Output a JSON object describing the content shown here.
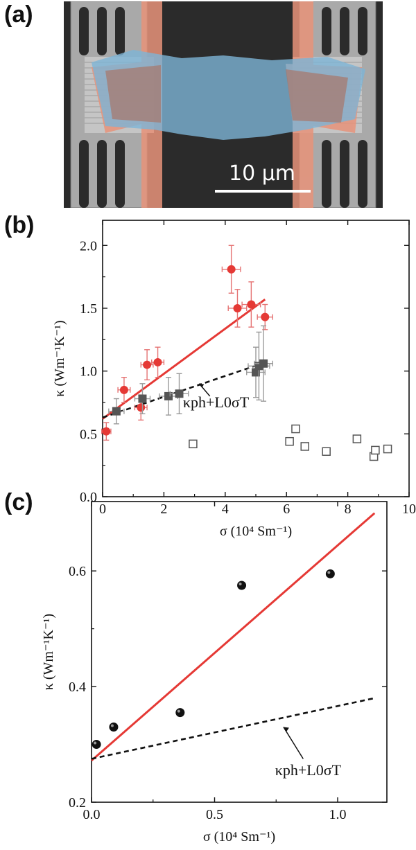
{
  "figure": {
    "panel_a_label": "(a)",
    "panel_b_label": "(b)",
    "panel_c_label": "(c)",
    "scale_bar_text": "10 μm"
  },
  "chart_data": [
    {
      "panel": "b",
      "type": "scatter",
      "xlabel": "σ (10⁴ Sm⁻¹)",
      "ylabel": "κ (Wm⁻¹K⁻¹)",
      "xlim": [
        0,
        10
      ],
      "ylim": [
        0,
        2.2
      ],
      "xticks": [
        "0",
        "2",
        "4",
        "6",
        "8",
        "10"
      ],
      "yticks": [
        "0.0",
        "0.5",
        "1.0",
        "1.5",
        "2.0"
      ],
      "grid": false,
      "annotation": "κph+L0σT",
      "series": [
        {
          "marker": "filled-circle-red",
          "color": "#e53935",
          "points": [
            {
              "x": 0.12,
              "y": 0.52,
              "xerr": 0.15,
              "yerr": 0.07
            },
            {
              "x": 0.7,
              "y": 0.85,
              "xerr": 0.2,
              "yerr": 0.1
            },
            {
              "x": 1.25,
              "y": 0.71,
              "xerr": 0.2,
              "yerr": 0.1
            },
            {
              "x": 1.45,
              "y": 1.05,
              "xerr": 0.2,
              "yerr": 0.12
            },
            {
              "x": 1.8,
              "y": 1.07,
              "xerr": 0.2,
              "yerr": 0.12
            },
            {
              "x": 4.2,
              "y": 1.81,
              "xerr": 0.3,
              "yerr": 0.19
            },
            {
              "x": 4.4,
              "y": 1.5,
              "xerr": 0.3,
              "yerr": 0.15
            },
            {
              "x": 4.85,
              "y": 1.53,
              "xerr": 0.3,
              "yerr": 0.18
            },
            {
              "x": 5.3,
              "y": 1.43,
              "xerr": 0.25,
              "yerr": 0.1
            }
          ]
        },
        {
          "marker": "filled-square-gray",
          "color": "#555555",
          "points": [
            {
              "x": 0.45,
              "y": 0.68,
              "xerr": 0.25,
              "yerr": 0.1
            },
            {
              "x": 1.3,
              "y": 0.78,
              "xerr": 0.25,
              "yerr": 0.12
            },
            {
              "x": 2.15,
              "y": 0.8,
              "xerr": 0.3,
              "yerr": 0.15
            },
            {
              "x": 2.5,
              "y": 0.82,
              "xerr": 0.3,
              "yerr": 0.16
            },
            {
              "x": 5.0,
              "y": 0.99,
              "xerr": 0.3,
              "yerr": 0.2
            },
            {
              "x": 5.1,
              "y": 1.04,
              "xerr": 0.35,
              "yerr": 0.27
            },
            {
              "x": 5.25,
              "y": 1.06,
              "xerr": 0.3,
              "yerr": 0.3
            }
          ]
        },
        {
          "marker": "open-square",
          "color": "#555555",
          "points": [
            {
              "x": 2.95,
              "y": 0.42
            },
            {
              "x": 6.1,
              "y": 0.44
            },
            {
              "x": 6.3,
              "y": 0.54
            },
            {
              "x": 6.6,
              "y": 0.4
            },
            {
              "x": 7.3,
              "y": 0.36
            },
            {
              "x": 8.3,
              "y": 0.46
            },
            {
              "x": 8.85,
              "y": 0.32
            },
            {
              "x": 8.9,
              "y": 0.37
            },
            {
              "x": 9.3,
              "y": 0.38
            }
          ]
        }
      ],
      "lines": [
        {
          "style": "solid",
          "color": "#e53935",
          "x": [
            0,
            5.3
          ],
          "y": [
            0.62,
            1.57
          ]
        },
        {
          "style": "dashed",
          "color": "#111111",
          "x": [
            0,
            5.2
          ],
          "y": [
            0.63,
            1.06
          ]
        }
      ]
    },
    {
      "panel": "c",
      "type": "scatter",
      "xlabel": "σ (10⁴ Sm⁻¹)",
      "ylabel": "κ (Wm⁻¹K⁻¹)",
      "xlim": [
        0,
        1.2
      ],
      "ylim": [
        0.2,
        0.72
      ],
      "xticks": [
        "0.0",
        "0.5",
        "1.0"
      ],
      "yticks": [
        "0.2",
        "0.4",
        "0.6"
      ],
      "grid": false,
      "annotation": "κph+L0σT",
      "series": [
        {
          "marker": "filled-circle-black",
          "color": "#111111",
          "points": [
            {
              "x": 0.02,
              "y": 0.3
            },
            {
              "x": 0.09,
              "y": 0.33
            },
            {
              "x": 0.36,
              "y": 0.355
            },
            {
              "x": 0.61,
              "y": 0.575
            },
            {
              "x": 0.97,
              "y": 0.595
            }
          ]
        }
      ],
      "lines": [
        {
          "style": "solid",
          "color": "#e53935",
          "x": [
            0,
            1.15
          ],
          "y": [
            0.272,
            0.7
          ]
        },
        {
          "style": "dashed",
          "color": "#111111",
          "x": [
            0,
            1.15
          ],
          "y": [
            0.275,
            0.38
          ]
        }
      ]
    }
  ]
}
